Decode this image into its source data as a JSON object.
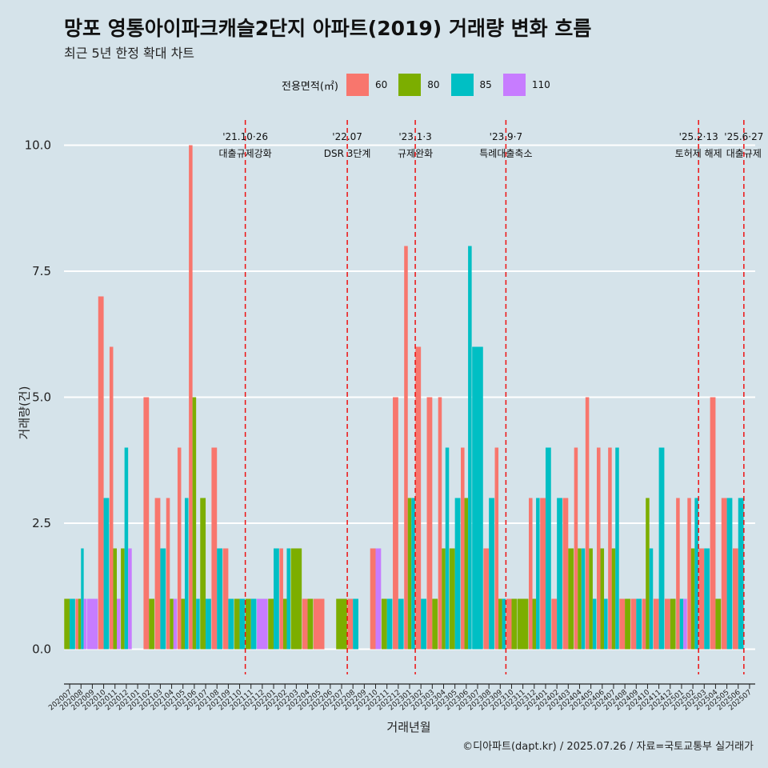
{
  "title": "망포 영통아이파크캐슬2단지 아파트(2019) 거래량 변화 흐름",
  "subtitle": "최근 5년 한정 확대 차트",
  "caption": "©디아파트(dapt.kr) / 2025.07.26 / 자료=국토교통부 실거래가",
  "legend": {
    "title": "전용면적(㎡)",
    "items": [
      {
        "label": "60",
        "color": "#f8766d"
      },
      {
        "label": "80",
        "color": "#7cae00"
      },
      {
        "label": "85",
        "color": "#00bfc4"
      },
      {
        "label": "110",
        "color": "#c77cff"
      }
    ]
  },
  "chart_data": {
    "type": "bar",
    "xlabel": "거래년월",
    "ylabel": "거래량(건)",
    "ylim": [
      -0.5,
      10.5
    ],
    "yticks": [
      "0.0",
      "2.5",
      "5.0",
      "7.5",
      "10.0"
    ],
    "ytick_values": [
      0,
      2.5,
      5,
      7.5,
      10
    ],
    "series_names": [
      "60",
      "80",
      "85",
      "110"
    ],
    "months": [
      "202007",
      "202008",
      "202009",
      "202010",
      "202011",
      "202012",
      "202101",
      "202102",
      "202103",
      "202104",
      "202105",
      "202106",
      "202107",
      "202108",
      "202109",
      "202110",
      "202111",
      "202112",
      "202201",
      "202202",
      "202203",
      "202204",
      "202205",
      "202206",
      "202207",
      "202208",
      "202209",
      "202210",
      "202211",
      "202212",
      "202301",
      "202302",
      "202303",
      "202304",
      "202305",
      "202306",
      "202307",
      "202308",
      "202309",
      "202310",
      "202311",
      "202312",
      "202401",
      "202402",
      "202403",
      "202404",
      "202405",
      "202406",
      "202407",
      "202408",
      "202409",
      "202410",
      "202411",
      "202412",
      "202501",
      "202502",
      "202503",
      "202504",
      "202505",
      "202506",
      "202507"
    ],
    "values": [
      [
        null,
        1,
        1,
        null
      ],
      [
        1,
        1,
        2,
        1
      ],
      [
        null,
        null,
        null,
        1
      ],
      [
        7,
        null,
        3,
        null
      ],
      [
        6,
        2,
        null,
        1
      ],
      [
        null,
        2,
        4,
        2
      ],
      [
        null,
        null,
        null,
        null
      ],
      [
        5,
        1,
        null,
        null
      ],
      [
        3,
        null,
        2,
        null
      ],
      [
        3,
        1,
        null,
        1
      ],
      [
        4,
        1,
        3,
        null
      ],
      [
        10,
        5,
        1,
        null
      ],
      [
        null,
        3,
        1,
        null
      ],
      [
        4,
        null,
        2,
        null
      ],
      [
        2,
        null,
        1,
        null
      ],
      [
        null,
        1,
        1,
        null
      ],
      [
        null,
        1,
        1,
        null
      ],
      [
        null,
        null,
        null,
        1
      ],
      [
        null,
        1,
        2,
        null
      ],
      [
        2,
        1,
        2,
        null
      ],
      [
        null,
        2,
        null,
        null
      ],
      [
        1,
        1,
        null,
        null
      ],
      [
        1,
        null,
        null,
        null
      ],
      [
        null,
        null,
        null,
        null
      ],
      [
        null,
        1,
        null,
        null
      ],
      [
        1,
        null,
        1,
        null
      ],
      [
        null,
        null,
        null,
        null
      ],
      [
        2,
        null,
        null,
        2
      ],
      [
        null,
        1,
        1,
        null
      ],
      [
        5,
        null,
        1,
        null
      ],
      [
        8,
        3,
        3,
        null
      ],
      [
        6,
        null,
        1,
        null
      ],
      [
        5,
        1,
        null,
        null
      ],
      [
        5,
        2,
        4,
        null
      ],
      [
        null,
        2,
        3,
        null
      ],
      [
        4,
        3,
        8,
        null
      ],
      [
        null,
        null,
        6,
        null
      ],
      [
        2,
        null,
        3,
        null
      ],
      [
        4,
        1,
        1,
        null
      ],
      [
        1,
        1,
        null,
        null
      ],
      [
        null,
        1,
        null,
        null
      ],
      [
        3,
        1,
        3,
        null
      ],
      [
        3,
        null,
        4,
        null
      ],
      [
        1,
        null,
        3,
        null
      ],
      [
        3,
        2,
        null,
        null
      ],
      [
        4,
        2,
        2,
        null
      ],
      [
        5,
        2,
        1,
        null
      ],
      [
        4,
        2,
        1,
        null
      ],
      [
        4,
        2,
        4,
        null
      ],
      [
        1,
        1,
        null,
        null
      ],
      [
        1,
        null,
        1,
        null
      ],
      [
        1,
        3,
        2,
        null
      ],
      [
        1,
        null,
        4,
        null
      ],
      [
        1,
        1,
        null,
        null
      ],
      [
        3,
        null,
        1,
        1
      ],
      [
        3,
        2,
        3,
        null
      ],
      [
        2,
        null,
        2,
        null
      ],
      [
        5,
        1,
        null,
        null
      ],
      [
        3,
        null,
        3,
        null
      ],
      [
        2,
        null,
        3,
        null
      ],
      [
        null,
        null,
        null,
        null
      ]
    ],
    "events": [
      {
        "after_month": "202110",
        "date": "'21.10·26",
        "label": "대출규제강화"
      },
      {
        "after_month": "202207",
        "date": "'22.07",
        "label": "DSR 3단계"
      },
      {
        "after_month": "202301",
        "date": "'23.1·3",
        "label": "규제완화"
      },
      {
        "after_month": "202309",
        "date": "'23.9·7",
        "label": "특례대출축소"
      },
      {
        "after_month": "202502",
        "date": "'25.2·13",
        "label": "토허제 해제"
      },
      {
        "after_month": "202506",
        "date": "'25.6·27",
        "label": "대출규제"
      }
    ]
  }
}
